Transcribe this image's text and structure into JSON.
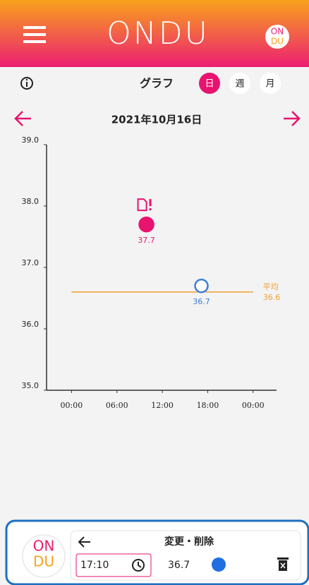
{
  "header": {
    "logo": "ONDU",
    "badge_top": "ON",
    "badge_bottom": "DU"
  },
  "toolbar": {
    "title": "グラフ",
    "tabs": [
      "日",
      "週",
      "月"
    ],
    "active_tab": 0
  },
  "date": "2021年10月16日",
  "chart_data": {
    "type": "scatter",
    "xlim": [
      -3.3,
      27.1
    ],
    "xticks": [
      {
        "value": 0,
        "label": "00:00"
      },
      {
        "value": 6,
        "label": "06:00"
      },
      {
        "value": 12,
        "label": "12:00"
      },
      {
        "value": 18,
        "label": "18:00"
      },
      {
        "value": 24,
        "label": "00:00"
      }
    ],
    "ylim": [
      35,
      39
    ],
    "yticks": [
      {
        "value": 35,
        "label": "35.0"
      },
      {
        "value": 36,
        "label": "36.0"
      },
      {
        "value": 37,
        "label": "37.0"
      },
      {
        "value": 38,
        "label": "38.0"
      },
      {
        "value": 39,
        "label": "39.0"
      }
    ],
    "points": [
      {
        "x": 9.9,
        "y": 37.7,
        "color": "#e8136f",
        "filled": true,
        "note": true
      },
      {
        "x": 17.17,
        "y": 36.7,
        "color": "#3b7fd9",
        "filled": false,
        "note": false
      }
    ],
    "average": {
      "label": "平均",
      "value": 36.6,
      "color": "#f0a030"
    }
  },
  "edit": {
    "title": "変更・削除",
    "time": "17:10",
    "value": 36.7
  }
}
